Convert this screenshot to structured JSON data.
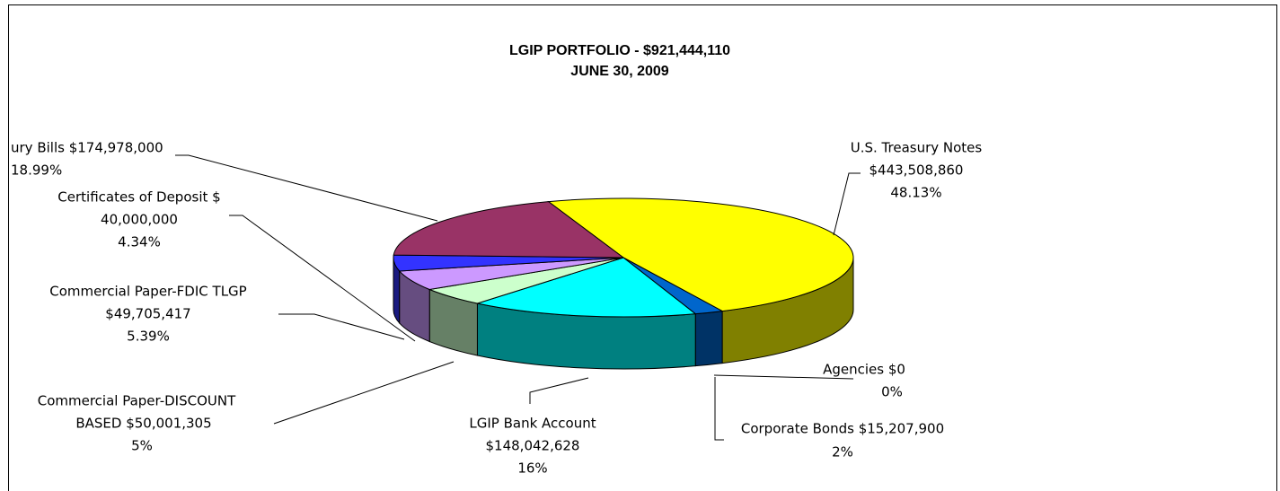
{
  "chart_data": {
    "type": "pie",
    "title": "LGIP PORTFOLIO - $921,444,110",
    "subtitle": "JUNE 30, 2009",
    "labels": [
      [
        "U.S. Treasury Notes",
        "$443,508,860"
      ],
      [
        "Corporate Bonds $15,207,900"
      ],
      [
        "Agencies  $0"
      ],
      [
        "LGIP Bank Account",
        "$148,042,628"
      ],
      [
        "Commercial Paper-DISCOUNT",
        "BASED  $50,001,305"
      ],
      [
        "Commercial Paper-FDIC TLGP",
        "$49,705,417"
      ],
      [
        "Certificates of Deposit $",
        "40,000,000"
      ],
      [
        "ury Bills $174,978,000"
      ]
    ],
    "values": [
      48.13,
      2,
      0,
      16,
      5,
      5.39,
      4.34,
      18.99
    ],
    "value_labels": [
      "48.13%",
      "2%",
      "0%",
      "16%",
      "5%",
      "5.39%",
      "4.34%",
      "18.99%"
    ],
    "colors": [
      "#ffff00",
      "#0066cc",
      "#999999",
      "#00ffff",
      "#ccffcc",
      "#cc99ff",
      "#3333ff",
      "#993366"
    ]
  }
}
